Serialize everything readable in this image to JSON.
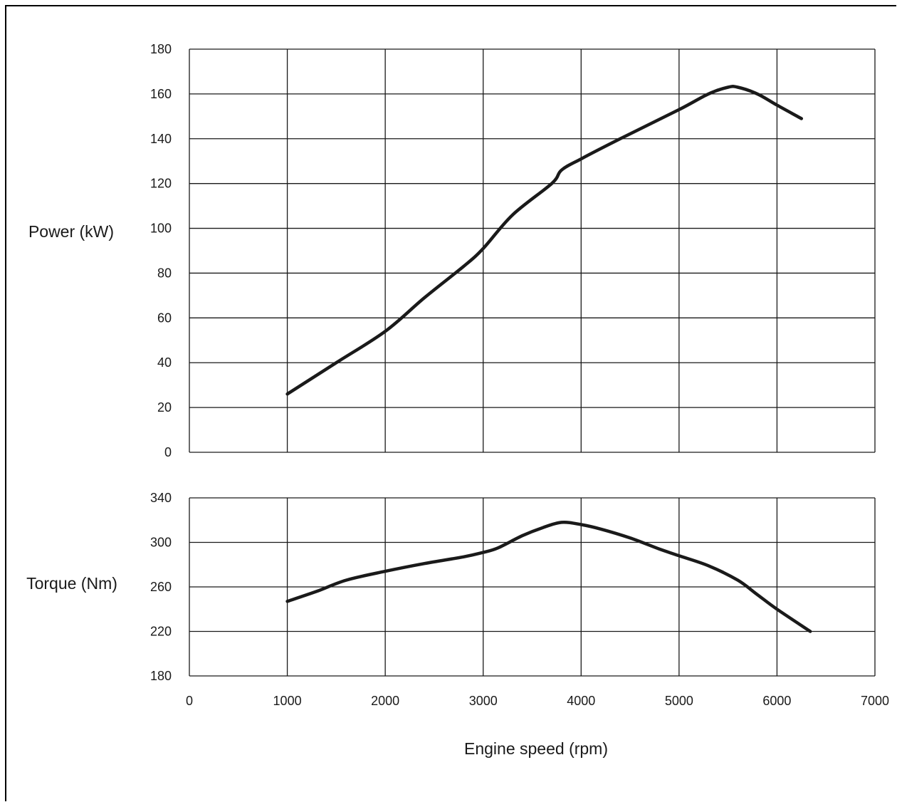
{
  "chart_data": [
    {
      "type": "line",
      "title": "",
      "xlabel": "",
      "ylabel": "Power (kW)",
      "xlim": [
        0,
        7000
      ],
      "ylim": [
        0,
        180
      ],
      "x_ticks": [
        0,
        1000,
        2000,
        3000,
        4000,
        5000,
        6000,
        7000
      ],
      "y_ticks": [
        0,
        20,
        40,
        60,
        80,
        100,
        120,
        140,
        160,
        180
      ],
      "grid": true,
      "legend": "none",
      "series": [
        {
          "color": "#1a1a1a",
          "x": [
            1000,
            1500,
            2000,
            2400,
            2800,
            3000,
            3300,
            3700,
            3800,
            4000,
            4400,
            5000,
            5300,
            5500,
            5600,
            5800,
            6000,
            6250
          ],
          "y": [
            26,
            40,
            54,
            69,
            83,
            91,
            106,
            120,
            126,
            131,
            140,
            153,
            160,
            163,
            163,
            160,
            155,
            149
          ]
        }
      ]
    },
    {
      "type": "line",
      "title": "",
      "xlabel": "Engine speed (rpm)",
      "ylabel": "Torque (Nm)",
      "xlim": [
        0,
        7000
      ],
      "ylim": [
        180,
        340
      ],
      "x_ticks": [
        0,
        1000,
        2000,
        3000,
        4000,
        5000,
        6000,
        7000
      ],
      "y_ticks": [
        180,
        220,
        260,
        300,
        340
      ],
      "grid": true,
      "legend": "none",
      "series": [
        {
          "color": "#1a1a1a",
          "x": [
            1000,
            1300,
            1600,
            2000,
            2400,
            2800,
            3000,
            3150,
            3400,
            3600,
            3800,
            4000,
            4200,
            4500,
            4800,
            5000,
            5300,
            5600,
            5800,
            6000,
            6340
          ],
          "y": [
            247,
            256,
            266,
            274,
            281,
            287,
            291,
            295,
            306,
            313,
            318,
            316,
            312,
            304,
            294,
            288,
            279,
            266,
            253,
            240,
            220
          ]
        }
      ]
    }
  ]
}
